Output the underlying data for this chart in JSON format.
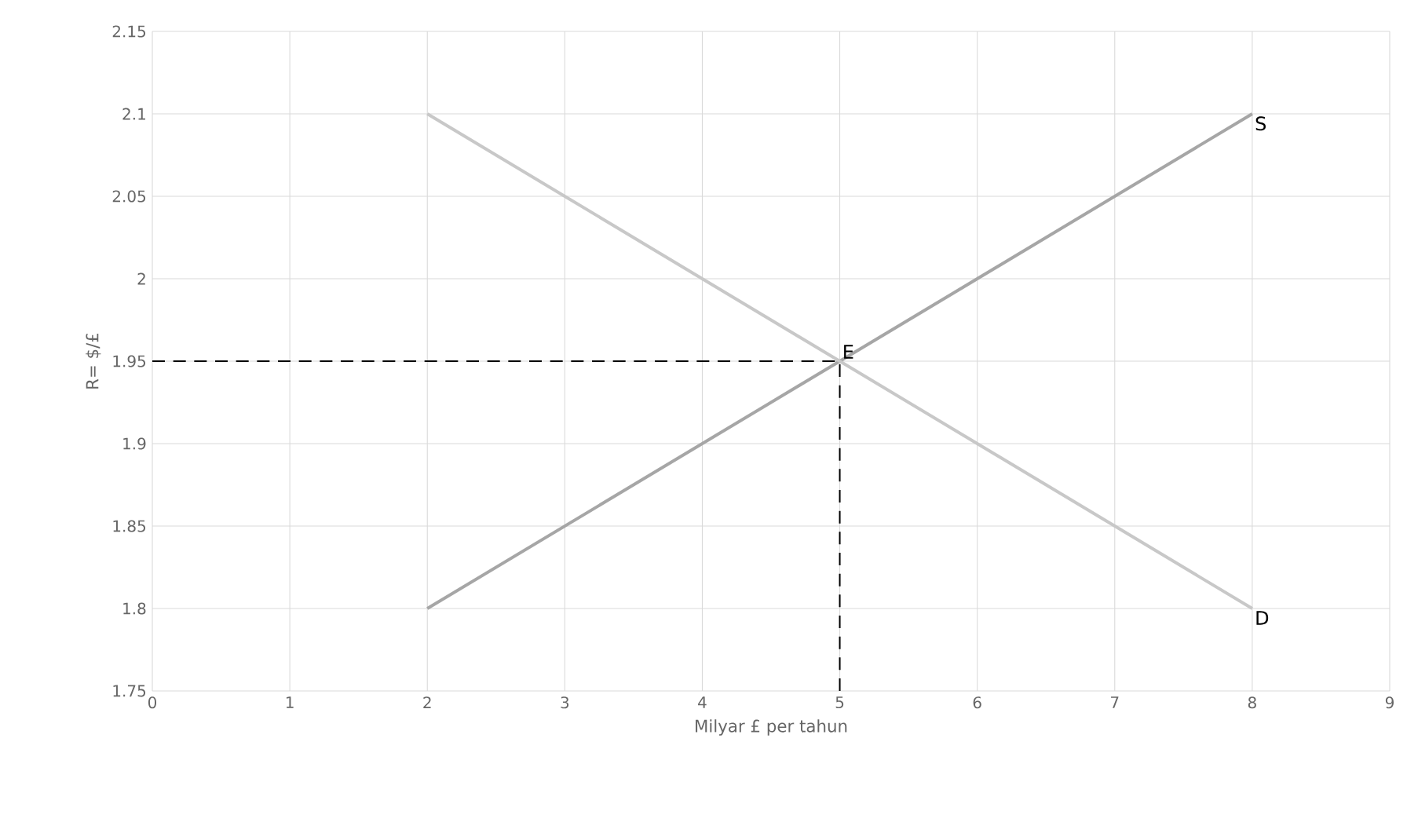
{
  "chart_data": {
    "type": "line",
    "xlabel": "Milyar £ per tahun",
    "ylabel": "R= $/£",
    "xlim": [
      0,
      9
    ],
    "ylim": [
      1.75,
      2.15
    ],
    "xticks": [
      0,
      1,
      2,
      3,
      4,
      5,
      6,
      7,
      8,
      9
    ],
    "yticks": [
      1.75,
      1.8,
      1.85,
      1.9,
      1.95,
      2,
      2.05,
      2.1,
      2.15
    ],
    "grid": true,
    "marker": "none",
    "series": [
      {
        "name": "S",
        "color": "#a6a6a6",
        "x": [
          2,
          8
        ],
        "values": [
          1.8,
          2.1
        ]
      },
      {
        "name": "D",
        "color": "#c8c8c8",
        "x": [
          2,
          8
        ],
        "values": [
          2.1,
          1.8
        ]
      },
      {
        "color": "#000000",
        "line_style": "dashed",
        "x": [
          0,
          5
        ],
        "values": [
          1.95,
          1.95
        ]
      },
      {
        "color": "#000000",
        "line_style": "dashed",
        "x": [
          5,
          5
        ],
        "values": [
          1.75,
          1.95
        ]
      }
    ],
    "annotations": [
      {
        "text": "E",
        "x": 5,
        "y": 1.95
      }
    ]
  }
}
